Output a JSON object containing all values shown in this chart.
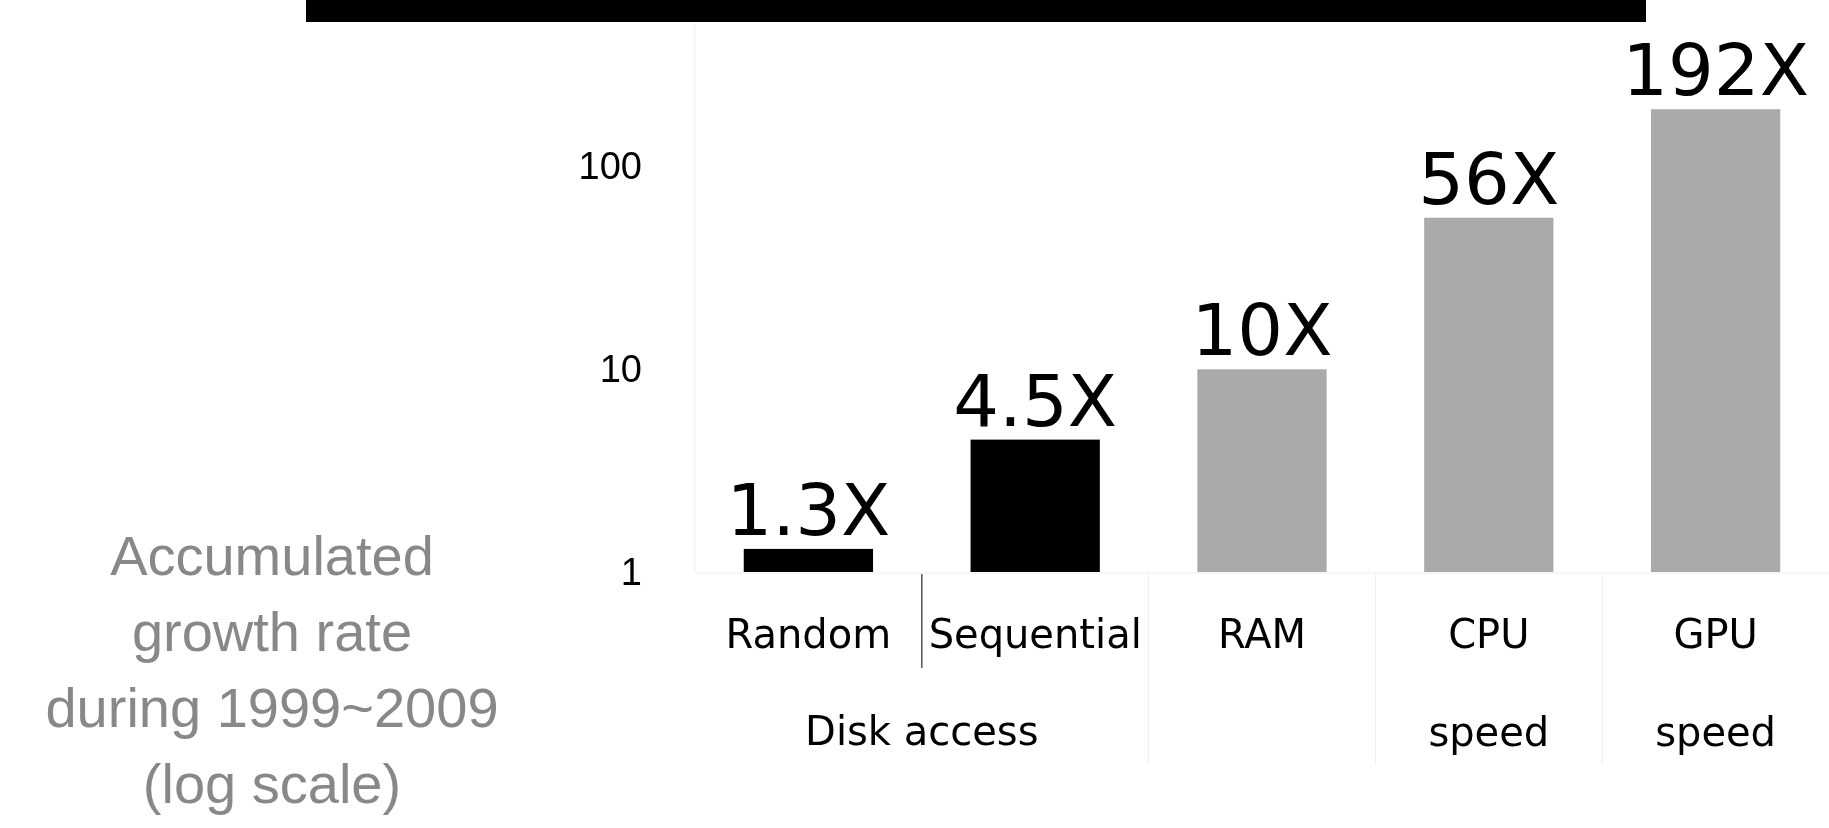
{
  "chart_data": {
    "type": "bar",
    "ylabel": "Accumulated growth rate during 1999~2009 (log scale)",
    "categories": [
      "Random",
      "Sequential",
      "RAM",
      "CPU speed",
      "GPU speed"
    ],
    "values": [
      1.3,
      4.5,
      10,
      56,
      192
    ],
    "colors": [
      "#000000",
      "#000000",
      "#aaaaaa",
      "#aaaaaa",
      "#aaaaaa"
    ],
    "value_labels": [
      "1.3X",
      "4.5X",
      "10X",
      "56X",
      "192X"
    ],
    "annotations": [
      "Disk access"
    ],
    "log": true,
    "ylim": [
      1,
      500
    ],
    "yticks": [
      1,
      10,
      100
    ]
  }
}
